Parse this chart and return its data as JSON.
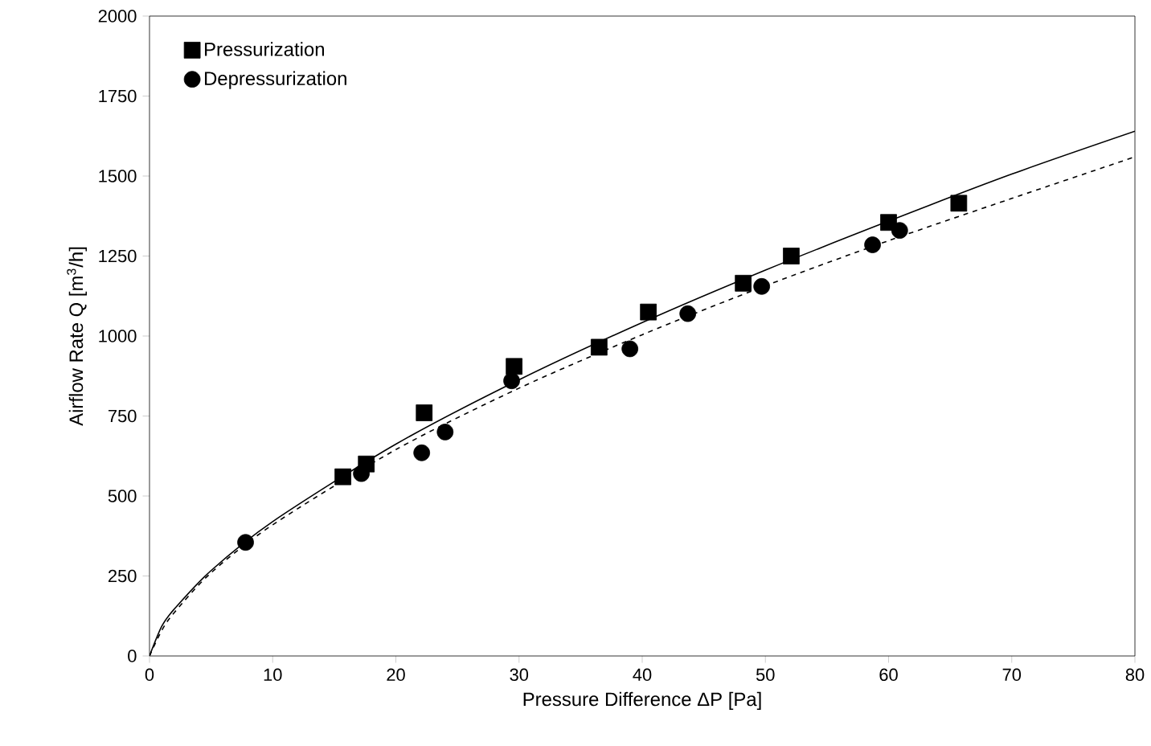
{
  "chart_data": {
    "type": "scatter",
    "xlabel": "Pressure Difference ΔP [Pa]",
    "ylabel": "Airflow Rate Q [m$^{3}$/h]",
    "xlim": [
      0,
      80
    ],
    "ylim": [
      0,
      2000
    ],
    "xticks": [
      0,
      10,
      20,
      30,
      40,
      50,
      60,
      70,
      80
    ],
    "yticks": [
      0,
      250,
      500,
      750,
      1000,
      1250,
      1500,
      1750,
      2000
    ],
    "grid": false,
    "legend": "top left",
    "series": [
      {
        "name": "Pressurization",
        "color": "#000000",
        "marker": "square",
        "x": [
          15.7,
          17.6,
          22.3,
          29.6,
          36.5,
          40.5,
          48.2,
          52.1,
          60.0,
          65.7
        ],
        "values": [
          560,
          600,
          760,
          905,
          965,
          1075,
          1165,
          1250,
          1355,
          1415
        ]
      },
      {
        "name": "Depressurization",
        "color": "#000000",
        "marker": "circle",
        "x": [
          7.8,
          17.2,
          22.1,
          24.0,
          29.4,
          39.0,
          43.7,
          49.7,
          58.7,
          60.9
        ],
        "values": [
          355,
          570,
          635,
          700,
          860,
          960,
          1070,
          1155,
          1285,
          1330
        ]
      },
      {
        "type": "line",
        "color": "#000000",
        "line_style": "solid",
        "marker": "none",
        "x": [
          0,
          1,
          2,
          5,
          10,
          20,
          30,
          40,
          50,
          60,
          70,
          80
        ],
        "values": [
          0,
          93,
          146,
          267,
          420,
          662,
          863,
          1042,
          1206,
          1359,
          1506,
          1640
        ]
      },
      {
        "type": "line",
        "color": "#000000",
        "line_style": "dashed",
        "marker": "none",
        "x": [
          0,
          1,
          2,
          5,
          10,
          20,
          30,
          40,
          50,
          60,
          70,
          80
        ],
        "values": [
          0,
          80,
          135,
          260,
          410,
          645,
          837,
          1004,
          1157,
          1298,
          1430,
          1560
        ]
      }
    ]
  }
}
